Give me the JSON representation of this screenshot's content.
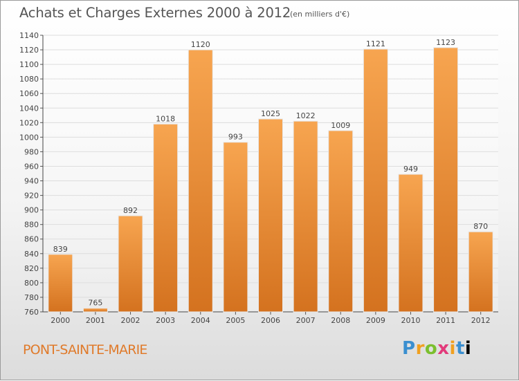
{
  "title": "Achats et Charges Externes 2000 à 2012",
  "subtitle": "(en milliers d'€)",
  "commune": "PONT-SAINTE-MARIE",
  "logo_text": "Proxiti",
  "colors": {
    "bar_light": "#f7a550",
    "bar_dark": "#d4721f",
    "title_text": "#555555",
    "commune_text": "#e07a2a",
    "grid": "#dddddd"
  },
  "chart_data": {
    "type": "bar",
    "title": "Achats et Charges Externes 2000 à 2012",
    "subtitle": "(en milliers d'€)",
    "categories": [
      "2000",
      "2001",
      "2002",
      "2003",
      "2004",
      "2005",
      "2006",
      "2007",
      "2008",
      "2009",
      "2010",
      "2011",
      "2012"
    ],
    "values": [
      839,
      765,
      892,
      1018,
      1120,
      993,
      1025,
      1022,
      1009,
      1121,
      949,
      1123,
      870
    ],
    "ylim": [
      760,
      1140
    ],
    "ytick_step": 20,
    "grid": true,
    "data_labels": true,
    "legend": "none"
  }
}
